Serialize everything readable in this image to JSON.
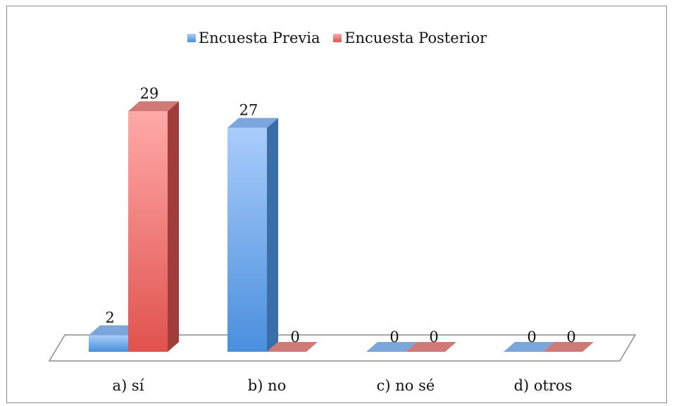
{
  "chart_data": {
    "type": "bar",
    "categories": [
      "a) sí",
      "b) no",
      "c) no sé",
      "d) otros"
    ],
    "series": [
      {
        "name": "Encuesta Previa",
        "values": [
          2,
          27,
          0,
          0
        ]
      },
      {
        "name": "Encuesta Posterior",
        "values": [
          29,
          0,
          0,
          0
        ]
      }
    ],
    "legend_position": "top",
    "grid": false,
    "ylim": [
      0,
      29
    ],
    "colors": {
      "series_0": {
        "front_top": "#a9cdfb",
        "front_bottom": "#4a8fdd",
        "side": "#3a6ea8",
        "top": "#7aa6dc"
      },
      "series_1": {
        "front_top": "#ffaaa8",
        "front_bottom": "#e0524e",
        "side": "#a03c3a",
        "top": "#d07a78"
      },
      "floor_stroke": "#8c8c8c"
    }
  }
}
